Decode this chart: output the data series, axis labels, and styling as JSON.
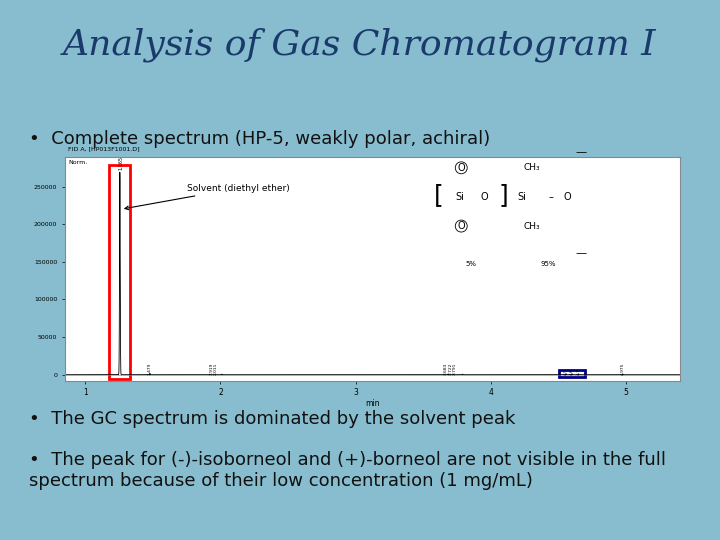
{
  "title": "Analysis of Gas Chromatogram I",
  "background_color": "#87BDCE",
  "title_color": "#1a3a6b",
  "title_fontsize": 26,
  "bullet1": "Complete spectrum (HP-5, weakly polar, achiral)",
  "bullet2": "The GC spectrum is dominated by the solvent peak",
  "bullet3": "The peak for (-)-isoborneol and (+)-borneol are not visible in the full\nspectrum because of their low concentration (1 mg/mL)",
  "bullet_fontsize": 13,
  "bullet_color": "#111111",
  "chromatogram_bg": "#ffffff",
  "chromatogram_border": "#aaaaaa",
  "solvent_label": "Solvent (diethyl ether)",
  "subtitle_label": "FID A, [HP013F1001.D]",
  "peak_height": 270000,
  "yticks": [
    0,
    50000,
    100000,
    150000,
    200000,
    250000
  ],
  "ytick_labels": [
    "0",
    "50000",
    "100000",
    "150000",
    "200000",
    "250000"
  ],
  "xticks": [
    1,
    2,
    3,
    4,
    5
  ],
  "x_min": 0.85,
  "x_max": 5.4,
  "y_min": -8000,
  "y_max": 290000
}
